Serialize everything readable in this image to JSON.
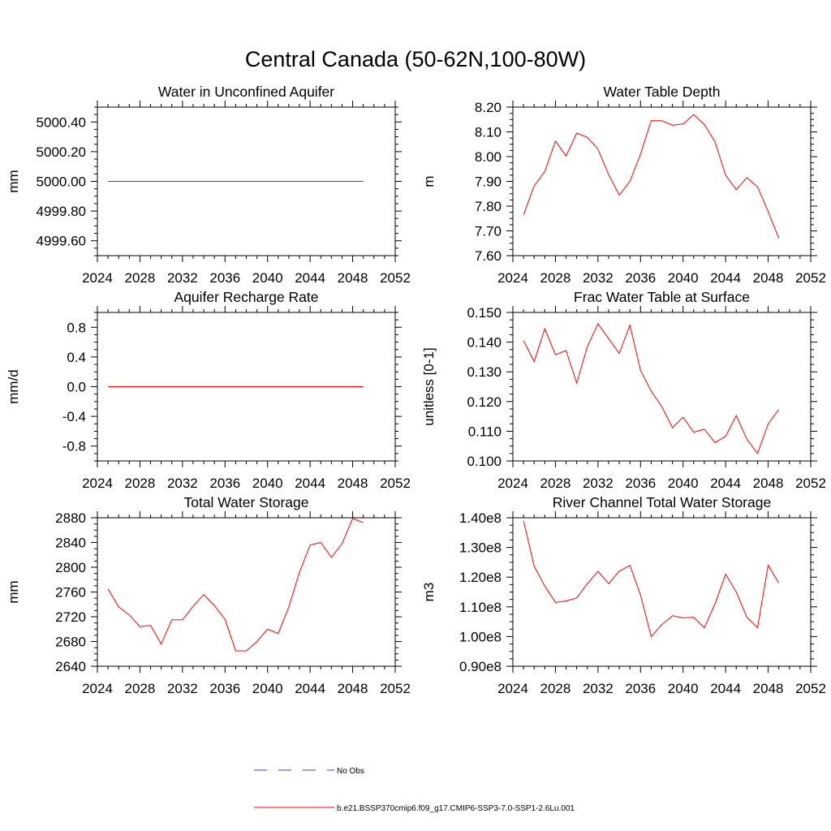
{
  "figure": {
    "title": "Central Canada (50-62N,100-80W)"
  },
  "legend": {
    "items": [
      {
        "label": "No Obs",
        "color": "#3c3ccf",
        "style": "dashed"
      },
      {
        "label": "b.e21.BSSP370cmip6.f09_g17.CMIP6-SSP3-7.0-SSP1-2.6Lu.001",
        "color": "#ff0000",
        "style": "solid"
      }
    ]
  },
  "chart_data": [
    {
      "type": "line",
      "title": "Water in Unconfined Aquifer",
      "ylabel": "mm",
      "xlim": [
        2024,
        2052
      ],
      "ylim": [
        4999.5,
        5000.5
      ],
      "xticks": [
        "2024",
        "2028",
        "2032",
        "2036",
        "2040",
        "2044",
        "2048",
        "2052"
      ],
      "yticks": [
        {
          "v": 4999.6,
          "label": "4999.60"
        },
        {
          "v": 4999.8,
          "label": "4999.80"
        },
        {
          "v": 5000.0,
          "label": "5000.00"
        },
        {
          "v": 5000.2,
          "label": "5000.20"
        },
        {
          "v": 5000.4,
          "label": "5000.40"
        }
      ],
      "x": [
        2025,
        2026,
        2027,
        2028,
        2029,
        2030,
        2031,
        2032,
        2033,
        2034,
        2035,
        2036,
        2037,
        2038,
        2039,
        2040,
        2041,
        2042,
        2043,
        2044,
        2045,
        2046,
        2047,
        2048,
        2049
      ],
      "series": [
        {
          "values": [
            5000,
            5000,
            5000,
            5000,
            5000,
            5000,
            5000,
            5000,
            5000,
            5000,
            5000,
            5000,
            5000,
            5000,
            5000,
            5000,
            5000,
            5000,
            5000,
            5000,
            5000,
            5000,
            5000,
            5000,
            5000
          ]
        }
      ]
    },
    {
      "type": "line",
      "title": "Water Table Depth",
      "ylabel": "m",
      "xlim": [
        2024,
        2052
      ],
      "ylim": [
        7.6,
        8.2
      ],
      "xticks": [
        "2024",
        "2028",
        "2032",
        "2036",
        "2040",
        "2044",
        "2048",
        "2052"
      ],
      "yticks": [
        {
          "v": 7.6,
          "label": "7.60"
        },
        {
          "v": 7.7,
          "label": "7.70"
        },
        {
          "v": 7.8,
          "label": "7.80"
        },
        {
          "v": 7.9,
          "label": "7.90"
        },
        {
          "v": 8.0,
          "label": "8.00"
        },
        {
          "v": 8.1,
          "label": "8.10"
        },
        {
          "v": 8.2,
          "label": "8.20"
        }
      ],
      "x": [
        2025,
        2026,
        2027,
        2028,
        2029,
        2030,
        2031,
        2032,
        2033,
        2034,
        2035,
        2036,
        2037,
        2038,
        2039,
        2040,
        2041,
        2042,
        2043,
        2044,
        2045,
        2046,
        2047,
        2048,
        2049
      ],
      "series": [
        {
          "values": [
            7.765,
            7.882,
            7.94,
            8.063,
            8.003,
            8.095,
            8.078,
            8.03,
            7.928,
            7.845,
            7.9,
            8.01,
            8.145,
            8.145,
            8.127,
            8.132,
            8.17,
            8.13,
            8.06,
            7.925,
            7.867,
            7.915,
            7.878,
            7.778,
            7.67
          ]
        }
      ]
    },
    {
      "type": "line",
      "title": "Aquifer Recharge Rate",
      "ylabel": "mm/d",
      "xlim": [
        2024,
        2052
      ],
      "ylim": [
        -1.0,
        1.0
      ],
      "xticks": [
        "2024",
        "2028",
        "2032",
        "2036",
        "2040",
        "2044",
        "2048",
        "2052"
      ],
      "yticks": [
        {
          "v": -0.8,
          "label": "-0.8"
        },
        {
          "v": -0.4,
          "label": "-0.4"
        },
        {
          "v": 0.0,
          "label": "0.0"
        },
        {
          "v": 0.4,
          "label": "0.4"
        },
        {
          "v": 0.8,
          "label": "0.8"
        }
      ],
      "x": [
        2025,
        2026,
        2027,
        2028,
        2029,
        2030,
        2031,
        2032,
        2033,
        2034,
        2035,
        2036,
        2037,
        2038,
        2039,
        2040,
        2041,
        2042,
        2043,
        2044,
        2045,
        2046,
        2047,
        2048,
        2049
      ],
      "series": [
        {
          "values": [
            0,
            0,
            0,
            0,
            0,
            0,
            0,
            0,
            0,
            0,
            0,
            0,
            0,
            0,
            0,
            0,
            0,
            0,
            0,
            0,
            0,
            0,
            0,
            0,
            0
          ]
        }
      ]
    },
    {
      "type": "line",
      "title": "Frac Water Table at Surface",
      "ylabel": "unitless [0-1]",
      "xlim": [
        2024,
        2052
      ],
      "ylim": [
        0.1,
        0.15
      ],
      "xticks": [
        "2024",
        "2028",
        "2032",
        "2036",
        "2040",
        "2044",
        "2048",
        "2052"
      ],
      "yticks": [
        {
          "v": 0.1,
          "label": "0.100"
        },
        {
          "v": 0.11,
          "label": "0.110"
        },
        {
          "v": 0.12,
          "label": "0.120"
        },
        {
          "v": 0.13,
          "label": "0.130"
        },
        {
          "v": 0.14,
          "label": "0.140"
        },
        {
          "v": 0.15,
          "label": "0.150"
        }
      ],
      "x": [
        2025,
        2026,
        2027,
        2028,
        2029,
        2030,
        2031,
        2032,
        2033,
        2034,
        2035,
        2036,
        2037,
        2038,
        2039,
        2040,
        2041,
        2042,
        2043,
        2044,
        2045,
        2046,
        2047,
        2048,
        2049
      ],
      "series": [
        {
          "values": [
            0.1405,
            0.1335,
            0.1445,
            0.1358,
            0.1372,
            0.1262,
            0.1385,
            0.1462,
            0.1412,
            0.1362,
            0.1457,
            0.1305,
            0.1235,
            0.1183,
            0.1112,
            0.1147,
            0.1097,
            0.1107,
            0.1062,
            0.1083,
            0.1153,
            0.1073,
            0.1025,
            0.1125,
            0.1173
          ]
        }
      ]
    },
    {
      "type": "line",
      "title": "Total Water Storage",
      "ylabel": "mm",
      "xlim": [
        2024,
        2052
      ],
      "ylim": [
        2640,
        2880
      ],
      "xticks": [
        "2024",
        "2028",
        "2032",
        "2036",
        "2040",
        "2044",
        "2048",
        "2052"
      ],
      "yticks": [
        {
          "v": 2640,
          "label": "2640"
        },
        {
          "v": 2680,
          "label": "2680"
        },
        {
          "v": 2720,
          "label": "2720"
        },
        {
          "v": 2760,
          "label": "2760"
        },
        {
          "v": 2800,
          "label": "2800"
        },
        {
          "v": 2840,
          "label": "2840"
        },
        {
          "v": 2880,
          "label": "2880"
        }
      ],
      "x": [
        2025,
        2026,
        2027,
        2028,
        2029,
        2030,
        2031,
        2032,
        2033,
        2034,
        2035,
        2036,
        2037,
        2038,
        2039,
        2040,
        2041,
        2042,
        2043,
        2044,
        2045,
        2046,
        2047,
        2048,
        2049
      ],
      "series": [
        {
          "values": [
            2765,
            2736,
            2723,
            2704,
            2706,
            2676,
            2715,
            2715,
            2737,
            2756,
            2738,
            2716,
            2665,
            2665,
            2680,
            2700,
            2693,
            2736,
            2792,
            2836,
            2840,
            2816,
            2838,
            2879,
            2872
          ]
        }
      ]
    },
    {
      "type": "line",
      "title": "River Channel Total Water Storage",
      "ylabel": "m3",
      "xlim": [
        2024,
        2052
      ],
      "ylim": [
        0.9,
        1.4
      ],
      "xticks": [
        "2024",
        "2028",
        "2032",
        "2036",
        "2040",
        "2044",
        "2048",
        "2052"
      ],
      "yticks": [
        {
          "v": 0.9,
          "label": "0.90e8"
        },
        {
          "v": 1.0,
          "label": "1.00e8"
        },
        {
          "v": 1.1,
          "label": "1.10e8"
        },
        {
          "v": 1.2,
          "label": "1.20e8"
        },
        {
          "v": 1.3,
          "label": "1.30e8"
        },
        {
          "v": 1.4,
          "label": "1.40e8"
        }
      ],
      "x": [
        2025,
        2026,
        2027,
        2028,
        2029,
        2030,
        2031,
        2032,
        2033,
        2034,
        2035,
        2036,
        2037,
        2038,
        2039,
        2040,
        2041,
        2042,
        2043,
        2044,
        2045,
        2046,
        2047,
        2048,
        2049
      ],
      "series": [
        {
          "values": [
            1.39,
            1.237,
            1.17,
            1.115,
            1.12,
            1.13,
            1.178,
            1.22,
            1.178,
            1.22,
            1.24,
            1.14,
            1.0,
            1.04,
            1.07,
            1.063,
            1.065,
            1.03,
            1.11,
            1.21,
            1.15,
            1.065,
            1.03,
            1.24,
            1.18
          ]
        }
      ]
    }
  ]
}
